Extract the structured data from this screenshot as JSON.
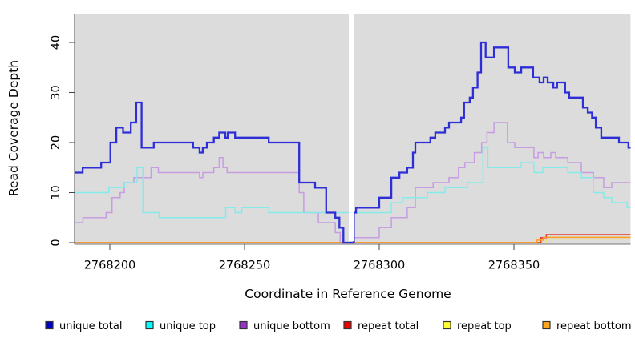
{
  "chart_data": {
    "type": "line",
    "step": true,
    "title": "",
    "xlabel": "Coordinate in Reference Genome",
    "ylabel": "Read Coverage Depth",
    "xlim": [
      2768186.9,
      2768393.3
    ],
    "ylim": [
      0,
      45.8
    ],
    "xticks": [
      2768200,
      2768250,
      2768300,
      2768350
    ],
    "yticks": [
      0,
      10,
      20,
      30,
      40
    ],
    "grid": false,
    "legend_position": "bottom",
    "panel_bg": "#dcdcdc",
    "no_data_gap": [
      2768288.7,
      2768290.6
    ],
    "series": [
      {
        "name": "unique total",
        "color": "#2e2ed6",
        "legend_fill": "#0000cd",
        "points": [
          [
            2768186.9,
            14
          ],
          [
            2768189.9,
            15
          ],
          [
            2768196.8,
            16
          ],
          [
            2768200.2,
            20
          ],
          [
            2768202.4,
            23
          ],
          [
            2768204.9,
            22
          ],
          [
            2768207.8,
            24
          ],
          [
            2768209.8,
            28
          ],
          [
            2768211.8,
            19
          ],
          [
            2768216.3,
            20
          ],
          [
            2768230.9,
            19
          ],
          [
            2768233.3,
            18
          ],
          [
            2768234.5,
            19
          ],
          [
            2768236.0,
            20
          ],
          [
            2768238.6,
            21
          ],
          [
            2768240.6,
            22
          ],
          [
            2768242.9,
            21
          ],
          [
            2768243.8,
            22
          ],
          [
            2768246.5,
            21
          ],
          [
            2768259.0,
            20
          ],
          [
            2768270.3,
            12
          ],
          [
            2768276.2,
            11
          ],
          [
            2768280.3,
            6
          ],
          [
            2768283.7,
            5
          ],
          [
            2768285.2,
            3
          ],
          [
            2768286.7,
            0
          ],
          [
            2768290.6,
            6
          ],
          [
            2768291.4,
            7
          ],
          [
            2768300.0,
            9
          ],
          [
            2768304.5,
            13
          ],
          [
            2768307.5,
            14
          ],
          [
            2768310.4,
            15
          ],
          [
            2768312.5,
            18
          ],
          [
            2768313.4,
            20
          ],
          [
            2768319.0,
            21
          ],
          [
            2768320.8,
            22
          ],
          [
            2768324.4,
            23
          ],
          [
            2768325.9,
            24
          ],
          [
            2768330.4,
            25
          ],
          [
            2768331.5,
            28
          ],
          [
            2768333.6,
            29
          ],
          [
            2768334.8,
            31
          ],
          [
            2768336.5,
            34
          ],
          [
            2768337.8,
            40
          ],
          [
            2768339.5,
            37
          ],
          [
            2768342.6,
            39
          ],
          [
            2768347.9,
            35
          ],
          [
            2768350.3,
            34
          ],
          [
            2768352.7,
            35
          ],
          [
            2768357.1,
            33
          ],
          [
            2768359.5,
            32
          ],
          [
            2768361.0,
            33
          ],
          [
            2768362.5,
            32
          ],
          [
            2768364.6,
            31
          ],
          [
            2768366.0,
            32
          ],
          [
            2768369.0,
            30
          ],
          [
            2768370.5,
            29
          ],
          [
            2768375.6,
            27
          ],
          [
            2768377.4,
            26
          ],
          [
            2768379.0,
            25
          ],
          [
            2768380.4,
            23
          ],
          [
            2768382.4,
            21
          ],
          [
            2768389.0,
            20
          ],
          [
            2768392.5,
            19
          ]
        ]
      },
      {
        "name": "unique top",
        "color": "#84ebeb",
        "legend_fill": "#00ffff",
        "points": [
          [
            2768186.9,
            10
          ],
          [
            2768199.6,
            11
          ],
          [
            2768205.4,
            12
          ],
          [
            2768210.1,
            15
          ],
          [
            2768212.3,
            6
          ],
          [
            2768218.3,
            5
          ],
          [
            2768243.0,
            7
          ],
          [
            2768246.5,
            6
          ],
          [
            2768249.0,
            7
          ],
          [
            2768259.0,
            6
          ],
          [
            2768290.6,
            6
          ],
          [
            2768304.5,
            8
          ],
          [
            2768308.6,
            9
          ],
          [
            2768317.9,
            10
          ],
          [
            2768324.4,
            11
          ],
          [
            2768332.7,
            12
          ],
          [
            2768338.5,
            19
          ],
          [
            2768340.3,
            15
          ],
          [
            2768352.7,
            16
          ],
          [
            2768357.4,
            14
          ],
          [
            2768360.7,
            15
          ],
          [
            2768370.0,
            14
          ],
          [
            2768375.0,
            13
          ],
          [
            2768379.5,
            10
          ],
          [
            2768383.3,
            9
          ],
          [
            2768386.3,
            8
          ],
          [
            2768392.0,
            7
          ]
        ]
      },
      {
        "name": "unique bottom",
        "color": "#c79ce2",
        "legend_fill": "#9932cc",
        "points": [
          [
            2768186.9,
            4
          ],
          [
            2768190.0,
            5
          ],
          [
            2768198.6,
            6
          ],
          [
            2768200.8,
            9
          ],
          [
            2768203.8,
            10
          ],
          [
            2768205.4,
            12
          ],
          [
            2768208.9,
            13
          ],
          [
            2768215.3,
            15
          ],
          [
            2768218.0,
            14
          ],
          [
            2768233.3,
            13
          ],
          [
            2768234.5,
            14
          ],
          [
            2768238.6,
            15
          ],
          [
            2768240.6,
            17
          ],
          [
            2768242.0,
            15
          ],
          [
            2768243.5,
            14
          ],
          [
            2768270.3,
            10
          ],
          [
            2768272.0,
            6
          ],
          [
            2768277.4,
            4
          ],
          [
            2768283.7,
            2
          ],
          [
            2768285.5,
            0
          ],
          [
            2768290.6,
            1
          ],
          [
            2768300.0,
            3
          ],
          [
            2768304.5,
            5
          ],
          [
            2768310.4,
            7
          ],
          [
            2768313.4,
            11
          ],
          [
            2768320.0,
            12
          ],
          [
            2768325.9,
            13
          ],
          [
            2768329.4,
            15
          ],
          [
            2768331.8,
            16
          ],
          [
            2768335.3,
            18
          ],
          [
            2768338.0,
            20
          ],
          [
            2768340.0,
            22
          ],
          [
            2768342.6,
            24
          ],
          [
            2768347.6,
            20
          ],
          [
            2768350.3,
            19
          ],
          [
            2768357.4,
            17
          ],
          [
            2768359.0,
            18
          ],
          [
            2768361.0,
            17
          ],
          [
            2768363.7,
            18
          ],
          [
            2768365.5,
            17
          ],
          [
            2768370.0,
            16
          ],
          [
            2768375.0,
            14
          ],
          [
            2768379.5,
            13
          ],
          [
            2768383.3,
            11
          ],
          [
            2768386.3,
            12
          ]
        ]
      },
      {
        "name": "repeat total",
        "color": "#e8392c",
        "legend_fill": "#ee0000",
        "points": [
          [
            2768186.9,
            0
          ],
          [
            2768360.0,
            1
          ],
          [
            2768362.0,
            1.6
          ]
        ]
      },
      {
        "name": "repeat top",
        "color": "#efe26a",
        "legend_fill": "#ffff33",
        "points": [
          [
            2768186.9,
            0
          ],
          [
            2768362.0,
            0.7
          ]
        ]
      },
      {
        "name": "repeat bottom",
        "color": "#ff9e1b",
        "legend_fill": "#ffa51e",
        "points": [
          [
            2768186.9,
            0
          ],
          [
            2768358.5,
            0.5
          ],
          [
            2768361.0,
            1.05
          ]
        ]
      }
    ]
  },
  "legend": {
    "items": [
      {
        "label": "unique total",
        "fill": "#0000cd"
      },
      {
        "label": "unique top",
        "fill": "#00ffff"
      },
      {
        "label": "unique bottom",
        "fill": "#9932cc"
      },
      {
        "label": "repeat total",
        "fill": "#ee0000"
      },
      {
        "label": "repeat top",
        "fill": "#ffff33"
      },
      {
        "label": "repeat bottom",
        "fill": "#ffa51e"
      }
    ]
  }
}
